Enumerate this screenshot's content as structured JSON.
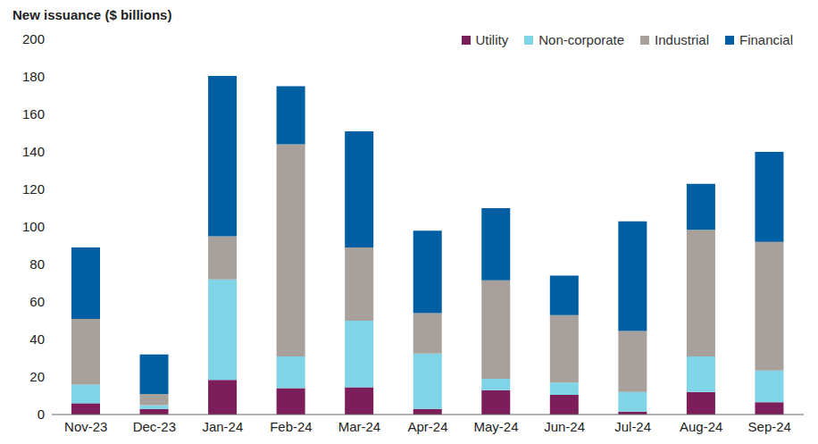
{
  "chart_data": {
    "type": "bar",
    "stacked": true,
    "y_label": "New issuance ($ billions)",
    "categories": [
      "Nov-23",
      "Dec-23",
      "Jan-24",
      "Feb-24",
      "Mar-24",
      "Apr-24",
      "May-24",
      "Jun-24",
      "Jul-24",
      "Aug-24",
      "Sep-24"
    ],
    "series": [
      {
        "name": "Utility",
        "color": "#7b1e5a",
        "values": [
          6,
          3,
          18.5,
          14,
          14.5,
          3,
          13,
          10.5,
          1.5,
          12,
          6.5
        ]
      },
      {
        "name": "Non-corporate",
        "color": "#7fd4e6",
        "values": [
          10,
          2,
          53.5,
          17,
          35.5,
          29.5,
          6,
          6.5,
          10.5,
          19,
          17
        ]
      },
      {
        "name": "Industrial",
        "color": "#a8a19b",
        "values": [
          35,
          6,
          23,
          113,
          39,
          21.5,
          52.5,
          36,
          32.5,
          67.5,
          68.5
        ]
      },
      {
        "name": "Financial",
        "color": "#005ea2",
        "values": [
          38,
          21,
          85.5,
          31,
          62,
          44,
          38.5,
          21,
          58.5,
          24.5,
          48
        ]
      }
    ],
    "ylim": [
      0,
      200
    ],
    "yticks": [
      0,
      20,
      40,
      60,
      80,
      100,
      120,
      140,
      160,
      180,
      200
    ],
    "grid": false,
    "legend": "top-right"
  }
}
